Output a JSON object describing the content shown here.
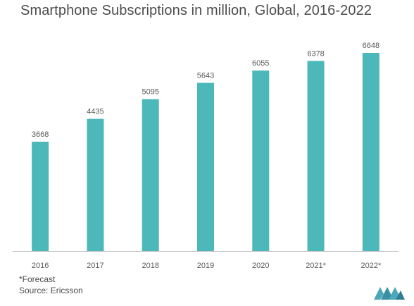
{
  "title": "Smartphone Subscriptions in million, Global, 2016-2022",
  "footnotes": {
    "forecast": "*Forecast",
    "source": "Source: Ericsson"
  },
  "colors": {
    "bar": "#4db8ba",
    "axis": "#bfbfbf",
    "text": "#595959",
    "logo": "#4aa8b8"
  },
  "logo_icon": "mordor-intelligence-logo-icon",
  "chart_data": {
    "type": "bar",
    "categories": [
      "2016",
      "2017",
      "2018",
      "2019",
      "2020",
      "2021*",
      "2022*"
    ],
    "values": [
      3668,
      4435,
      5095,
      5643,
      6055,
      6378,
      6648
    ],
    "data_labels": [
      "3668",
      "4435",
      "5095",
      "5643",
      "6055",
      "6378",
      "6648"
    ],
    "title": "Smartphone Subscriptions in million, Global, 2016-2022",
    "xlabel": "",
    "ylabel": "",
    "ylim": [
      0,
      6648
    ],
    "grid": false,
    "legend": "none"
  }
}
